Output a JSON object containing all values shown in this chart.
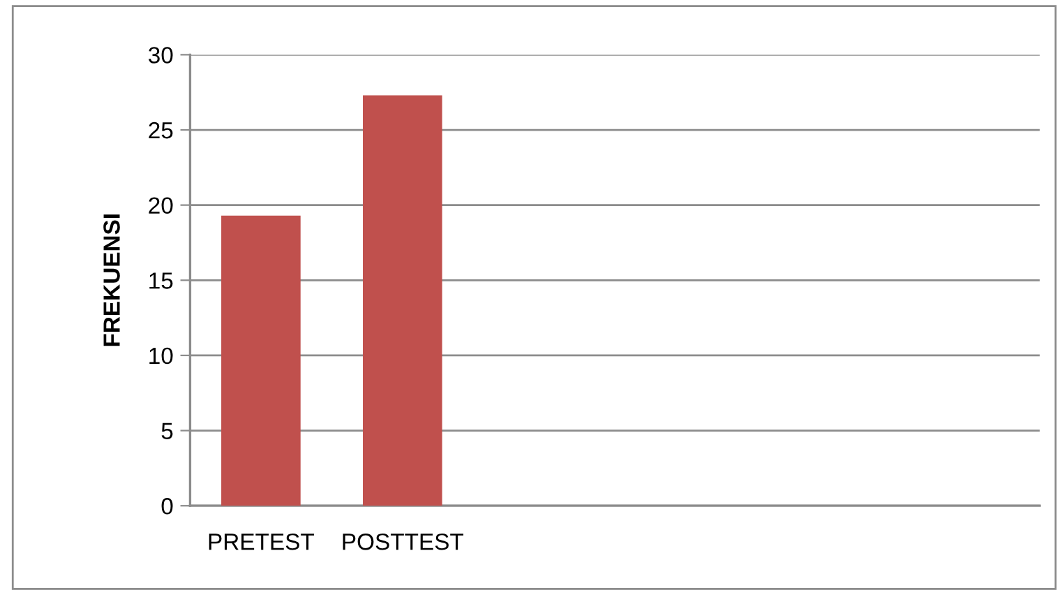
{
  "chart_data": {
    "type": "bar",
    "ylabel": "FREKUENSI",
    "categories": [
      "PRETEST",
      "POSTTEST",
      null,
      null,
      null,
      null
    ],
    "values": [
      19.3,
      27.3,
      null,
      null,
      null,
      null
    ],
    "color": "#c0504d",
    "ylim": [
      0,
      30
    ],
    "yticks": [
      0,
      5,
      10,
      15,
      20,
      25,
      30
    ],
    "grid": "y",
    "legend": false
  }
}
